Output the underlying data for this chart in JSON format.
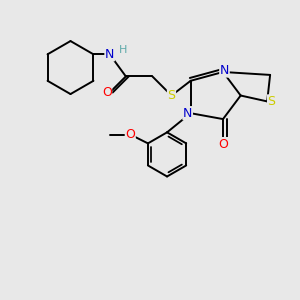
{
  "bg_color": "#e8e8e8",
  "bond_color": "#000000",
  "atom_colors": {
    "N": "#0000cc",
    "O": "#ff0000",
    "S": "#cccc00",
    "H": "#5faaaa",
    "C": "#000000"
  }
}
